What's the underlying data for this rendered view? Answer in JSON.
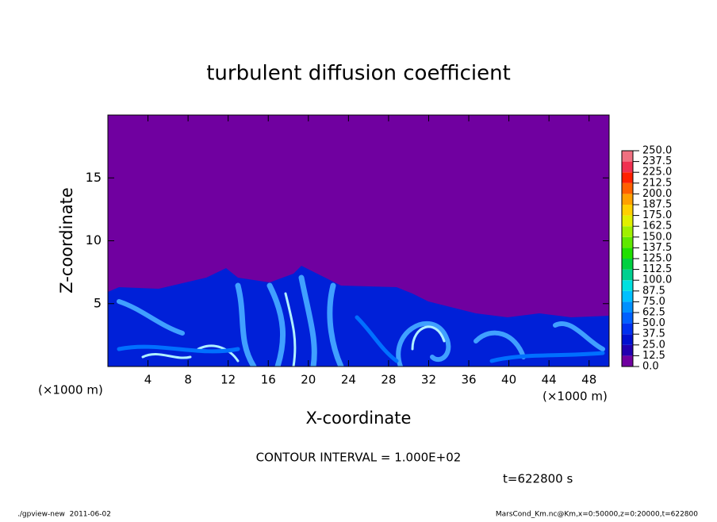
{
  "chart_data": {
    "type": "contour",
    "title": "turbulent diffusion coefficient",
    "x_label": "X-coordinate",
    "y_label": "Z-coordinate",
    "x_unit": "(×1000 m)",
    "y_unit": "(×1000 m)",
    "xlim": [
      0,
      50
    ],
    "xticks": [
      4,
      8,
      12,
      16,
      20,
      24,
      28,
      32,
      36,
      40,
      44,
      48
    ],
    "ylim": [
      0,
      20
    ],
    "yticks": [
      5,
      10,
      15
    ],
    "levels": [
      {
        "value": 0,
        "label": "0.0"
      },
      {
        "value": 12.5,
        "label": "12.5"
      },
      {
        "value": 25,
        "label": "25.0"
      },
      {
        "value": 37.5,
        "label": "37.5"
      },
      {
        "value": 50,
        "label": "50.0"
      },
      {
        "value": 62.5,
        "label": "62.5"
      },
      {
        "value": 75,
        "label": "75.0"
      },
      {
        "value": 87.5,
        "label": "87.5"
      },
      {
        "value": 100,
        "label": "100.0"
      },
      {
        "value": 112.5,
        "label": "112.5"
      },
      {
        "value": 125,
        "label": "125.0"
      },
      {
        "value": 137.5,
        "label": "137.5"
      },
      {
        "value": 150,
        "label": "150.0"
      },
      {
        "value": 162.5,
        "label": "162.5"
      },
      {
        "value": 175,
        "label": "175.0"
      },
      {
        "value": 187.5,
        "label": "187.5"
      },
      {
        "value": 200,
        "label": "200.0"
      },
      {
        "value": 212.5,
        "label": "212.5"
      },
      {
        "value": 225,
        "label": "225.0"
      },
      {
        "value": 237.5,
        "label": "237.5"
      },
      {
        "value": 250,
        "label": "250.0"
      }
    ],
    "colors": [
      "#7000a0",
      "#2200b0",
      "#0010d0",
      "#0030f0",
      "#0060ff",
      "#0090ff",
      "#00c0ff",
      "#00e0e0",
      "#00d090",
      "#00d040",
      "#20e000",
      "#60e800",
      "#a0f000",
      "#e0f000",
      "#ffd000",
      "#ffa000",
      "#ff6000",
      "#ff2000",
      "#f03050",
      "#f07080"
    ],
    "contour_interval": "CONTOUR INTERVAL = 1.000E+02",
    "time_label": "t=622800 s",
    "footer_left": "./gpview-new  2011-06-02",
    "footer_right": "MarsCond_Km.nc@Km,x=0:50000,z=0:20000,t=622800"
  }
}
